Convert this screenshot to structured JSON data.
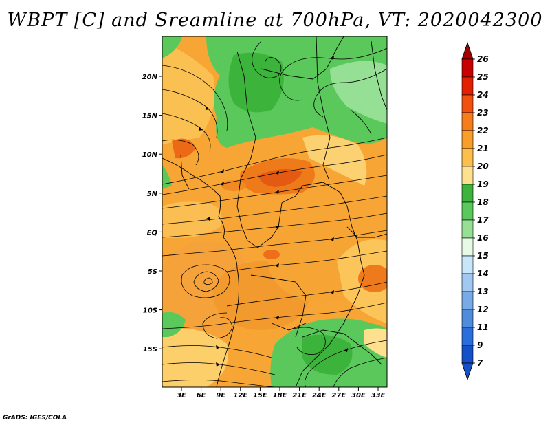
{
  "title": "WBPT [C] and Sreamline at 700hPa, VT: 2020042300",
  "credit": "GrADS: IGES/COLA",
  "lat_labels": [
    "20N",
    "15N",
    "10N",
    "5N",
    "EQ",
    "5S",
    "10S",
    "15S"
  ],
  "lon_labels": [
    "3E",
    "6E",
    "9E",
    "12E",
    "15E",
    "18E",
    "21E",
    "24E",
    "27E",
    "30E",
    "33E"
  ],
  "colorbar": {
    "labels": [
      "26",
      "25",
      "24",
      "23",
      "22",
      "21",
      "20",
      "19",
      "18",
      "17",
      "16",
      "15",
      "14",
      "13",
      "12",
      "11",
      "9",
      "7"
    ],
    "colors": [
      "#a50000",
      "#c80000",
      "#e12000",
      "#f05010",
      "#f57e1a",
      "#f99e28",
      "#fbbf4a",
      "#fee08e",
      "#3cb43c",
      "#5ac85a",
      "#96e096",
      "#e6fae6",
      "#c8e6fa",
      "#a0c8f0",
      "#78aae6",
      "#508cdc",
      "#2a6edc",
      "#1450c8"
    ]
  },
  "field": {
    "variable": "Wet-bulb potential temperature",
    "units": "C",
    "level": "700hPa",
    "valid_time": "2020042300"
  }
}
